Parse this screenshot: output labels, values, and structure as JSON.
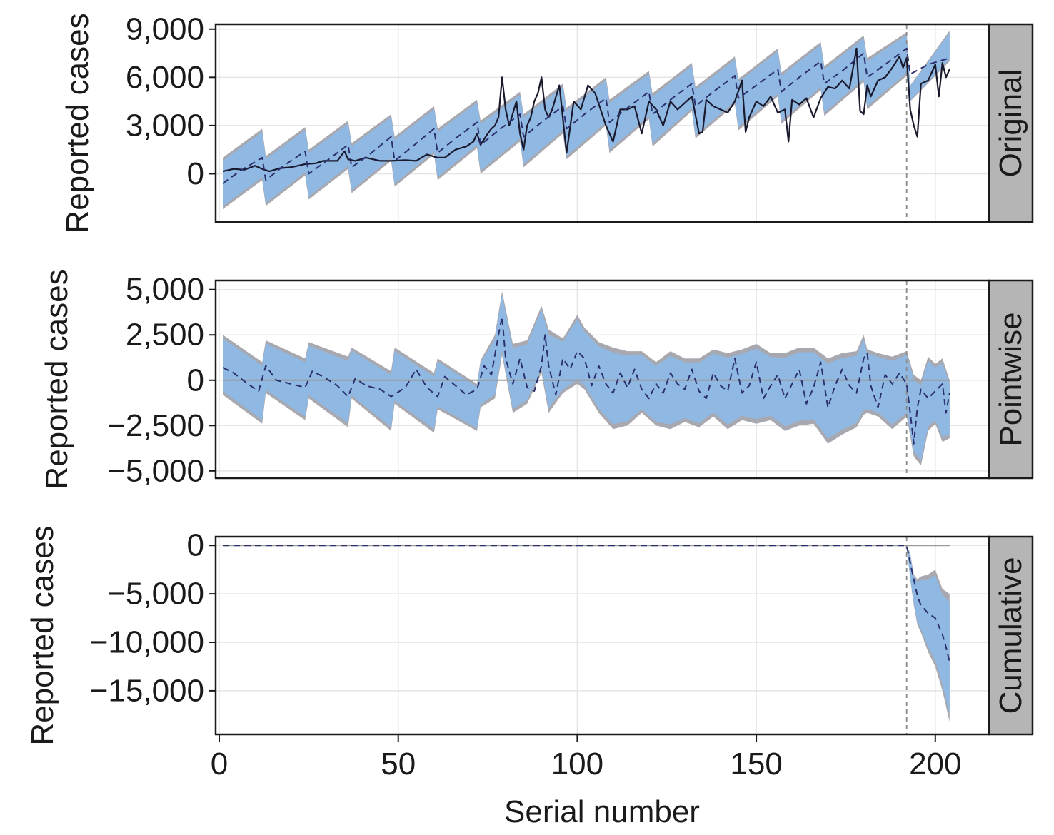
{
  "colors": {
    "band_blue": "#8fb8e3",
    "band_grey": "#a8a8b0",
    "observed_line": "#1a1a2e",
    "predicted_line": "#2b2f6e",
    "intervention_line": "#8a8a8a",
    "grid": "#e4e4e4",
    "strip_fill": "#b5b5b5"
  },
  "x_axis": {
    "label": "Serial number",
    "range": [
      -1,
      215
    ],
    "ticks": [
      0,
      50,
      100,
      150,
      200
    ],
    "tick_labels": [
      "0",
      "50",
      "100",
      "150",
      "200"
    ]
  },
  "intervention_x": 192,
  "chart_data": [
    {
      "type": "line",
      "panel": "Original",
      "ylabel": "Reported cases",
      "ylim": [
        -3000,
        9300
      ],
      "yticks": [
        0,
        3000,
        6000,
        9000
      ],
      "ytick_labels": [
        "0",
        "3,000",
        "6,000",
        "9,000"
      ],
      "series": [
        {
          "role": "observed",
          "x": [
            1,
            4,
            7,
            10,
            12,
            14,
            17,
            20,
            24,
            27,
            29,
            33,
            35,
            36,
            38,
            41,
            45,
            48,
            52,
            55,
            58,
            61,
            63,
            66,
            69,
            71,
            72,
            73,
            75,
            76,
            77,
            78,
            79,
            80,
            81,
            83,
            84,
            85,
            86,
            87,
            88,
            89,
            90,
            91,
            92,
            93,
            95,
            97,
            99,
            101,
            103,
            105,
            108,
            110,
            112,
            114,
            116,
            118,
            120,
            122,
            124,
            126,
            128,
            130,
            132,
            134,
            135,
            136,
            138,
            140,
            142,
            144,
            146,
            147,
            148,
            150,
            152,
            154,
            156,
            158,
            159,
            160,
            162,
            164,
            166,
            168,
            170,
            172,
            174,
            176,
            178,
            179,
            180,
            181,
            182,
            184,
            186,
            188,
            190,
            191,
            192,
            193,
            194,
            195,
            196,
            198,
            200,
            201,
            202,
            203,
            204
          ],
          "y": [
            150,
            300,
            250,
            500,
            300,
            150,
            350,
            400,
            600,
            650,
            800,
            800,
            1400,
            900,
            800,
            1000,
            800,
            800,
            850,
            800,
            1200,
            1000,
            1000,
            1500,
            1700,
            2000,
            2500,
            1800,
            2500,
            2800,
            3000,
            3500,
            6000,
            4000,
            3000,
            4500,
            2500,
            1500,
            3000,
            3500,
            4500,
            5000,
            6000,
            4000,
            3500,
            4000,
            5500,
            1300,
            4500,
            4000,
            5500,
            5000,
            3000,
            2000,
            4000,
            4000,
            4200,
            2500,
            4500,
            4000,
            3000,
            4500,
            4000,
            4400,
            4800,
            2500,
            2600,
            4600,
            4200,
            4000,
            3800,
            4500,
            5800,
            2600,
            3500,
            4500,
            4200,
            4800,
            3800,
            4000,
            2000,
            4600,
            4300,
            4700,
            3500,
            4700,
            5400,
            5300,
            5800,
            5300,
            7800,
            3900,
            3700,
            5500,
            4800,
            5800,
            6000,
            6600,
            7300,
            6600,
            7200,
            4000,
            3000,
            2300,
            5600,
            5800,
            6800,
            4800,
            6900,
            6000,
            6500
          ]
        },
        {
          "role": "predicted",
          "x": [
            1,
            6,
            12,
            13,
            18,
            24,
            25,
            30,
            36,
            37,
            42,
            48,
            49,
            54,
            60,
            61,
            66,
            72,
            73,
            78,
            84,
            85,
            90,
            96,
            97,
            102,
            108,
            109,
            114,
            120,
            121,
            126,
            132,
            133,
            138,
            144,
            145,
            150,
            156,
            157,
            162,
            168,
            169,
            174,
            180,
            181,
            186,
            192,
            193,
            198,
            204
          ],
          "y": [
            -600,
            200,
            1000,
            -400,
            500,
            1400,
            0,
            800,
            1800,
            400,
            1200,
            2300,
            800,
            1700,
            2800,
            1300,
            2200,
            3200,
            1800,
            2700,
            3700,
            2300,
            3200,
            4200,
            2800,
            3700,
            4700,
            3200,
            4100,
            5100,
            3700,
            4600,
            5600,
            4200,
            5100,
            6100,
            4700,
            5500,
            6500,
            5100,
            6000,
            7000,
            5600,
            6400,
            7500,
            6000,
            6800,
            7800,
            6200,
            6800,
            7200
          ]
        },
        {
          "role": "interval_upper",
          "x": [
            1,
            12,
            13,
            24,
            25,
            36,
            37,
            48,
            49,
            60,
            61,
            72,
            73,
            84,
            85,
            96,
            97,
            108,
            109,
            120,
            121,
            132,
            133,
            144,
            145,
            156,
            157,
            168,
            169,
            180,
            181,
            192,
            193,
            204
          ],
          "y": [
            1000,
            2800,
            1100,
            2900,
            1500,
            3300,
            1900,
            3700,
            2300,
            4200,
            2800,
            4600,
            3300,
            5100,
            3700,
            5600,
            4100,
            6000,
            4600,
            6400,
            5000,
            6900,
            5400,
            7300,
            5900,
            7800,
            6300,
            8200,
            6700,
            8600,
            7200,
            8800,
            5500,
            8900
          ]
        },
        {
          "role": "interval_lower",
          "x": [
            1,
            12,
            13,
            24,
            25,
            36,
            37,
            48,
            49,
            60,
            61,
            72,
            73,
            84,
            85,
            96,
            97,
            108,
            109,
            120,
            121,
            132,
            133,
            144,
            145,
            156,
            157,
            168,
            169,
            180,
            181,
            192,
            193,
            204
          ],
          "y": [
            -2200,
            -400,
            -2000,
            -100,
            -1600,
            300,
            -1200,
            800,
            -800,
            1200,
            -400,
            1600,
            0,
            2000,
            400,
            2500,
            900,
            3000,
            1300,
            3400,
            1700,
            3900,
            2200,
            4300,
            2700,
            4800,
            3100,
            5200,
            3600,
            5700,
            4000,
            6100,
            4500,
            7000
          ]
        }
      ]
    },
    {
      "type": "line",
      "panel": "Pointwise",
      "ylabel": "Reported cases",
      "ylim": [
        -5400,
        5500
      ],
      "yticks": [
        -5000,
        -2500,
        0,
        2500,
        5000
      ],
      "ytick_labels": [
        "−5,000",
        "−2,500",
        "0",
        "2,500",
        "5,000"
      ],
      "series": [
        {
          "role": "pointwise_effect",
          "x": [
            1,
            4,
            8,
            11,
            13,
            16,
            20,
            24,
            26,
            29,
            33,
            36,
            38,
            41,
            45,
            48,
            52,
            55,
            58,
            61,
            63,
            66,
            69,
            72,
            74,
            76,
            78,
            79,
            80,
            82,
            84,
            86,
            88,
            90,
            91,
            92,
            94,
            96,
            98,
            100,
            102,
            104,
            106,
            108,
            110,
            112,
            114,
            116,
            118,
            120,
            122,
            124,
            126,
            128,
            130,
            132,
            134,
            136,
            138,
            140,
            142,
            144,
            146,
            148,
            150,
            152,
            154,
            156,
            158,
            160,
            162,
            164,
            166,
            168,
            170,
            172,
            174,
            176,
            178,
            180,
            181,
            182,
            184,
            186,
            188,
            190,
            192,
            193,
            194,
            195,
            196,
            198,
            200,
            202,
            203,
            204
          ],
          "y": [
            700,
            400,
            -200,
            -600,
            800,
            0,
            -200,
            -400,
            500,
            200,
            -300,
            -900,
            100,
            -300,
            -500,
            -900,
            -400,
            600,
            -400,
            -900,
            200,
            -300,
            -800,
            -500,
            800,
            300,
            2500,
            3500,
            1200,
            -200,
            1200,
            -400,
            -600,
            800,
            2500,
            800,
            -800,
            1200,
            600,
            1600,
            1200,
            -300,
            800,
            -200,
            -700,
            400,
            -400,
            600,
            -500,
            -1000,
            -200,
            -700,
            400,
            -200,
            -500,
            600,
            -600,
            -1000,
            400,
            -300,
            -600,
            1200,
            -700,
            -300,
            1000,
            -1000,
            -300,
            300,
            -1000,
            -200,
            600,
            -1300,
            -400,
            1000,
            -1500,
            -300,
            600,
            -300,
            -700,
            1200,
            1500,
            -300,
            -1500,
            300,
            -200,
            400,
            -200,
            -1800,
            -3500,
            -1500,
            -500,
            -1000,
            -600,
            -200,
            -1800,
            -700
          ]
        },
        {
          "role": "interval_upper",
          "x": [
            1,
            12,
            13,
            24,
            25,
            36,
            37,
            48,
            49,
            60,
            61,
            72,
            73,
            77,
            79,
            82,
            86,
            90,
            92,
            96,
            100,
            102,
            106,
            110,
            114,
            118,
            122,
            126,
            130,
            134,
            138,
            142,
            146,
            150,
            154,
            158,
            162,
            166,
            170,
            174,
            178,
            180,
            181,
            184,
            188,
            192,
            194,
            196,
            198,
            200,
            202,
            204
          ],
          "y": [
            2500,
            1000,
            2200,
            1200,
            2100,
            1300,
            1800,
            500,
            1800,
            400,
            1200,
            -200,
            1100,
            2500,
            4900,
            2000,
            2200,
            4100,
            2800,
            2300,
            3600,
            2900,
            2100,
            1800,
            1600,
            1600,
            1000,
            1600,
            1200,
            1200,
            1700,
            1500,
            1700,
            2000,
            1500,
            1500,
            1800,
            1800,
            1200,
            1500,
            1600,
            2500,
            1700,
            1500,
            1300,
            1600,
            300,
            0,
            1300,
            900,
            1200,
            0
          ]
        },
        {
          "role": "interval_lower",
          "x": [
            1,
            12,
            13,
            24,
            25,
            36,
            37,
            48,
            49,
            60,
            61,
            72,
            73,
            77,
            79,
            82,
            86,
            90,
            92,
            96,
            100,
            102,
            106,
            110,
            114,
            118,
            122,
            126,
            130,
            134,
            138,
            142,
            146,
            150,
            154,
            158,
            162,
            166,
            170,
            174,
            178,
            180,
            181,
            184,
            188,
            192,
            194,
            196,
            198,
            200,
            202,
            204
          ],
          "y": [
            -800,
            -2400,
            -700,
            -2200,
            -1000,
            -2600,
            -1000,
            -2800,
            -1300,
            -2900,
            -1600,
            -2800,
            -1500,
            -1000,
            1400,
            -1800,
            -1300,
            400,
            -1800,
            -700,
            -200,
            -500,
            -1800,
            -2700,
            -2500,
            -1800,
            -2500,
            -2700,
            -2300,
            -2600,
            -2000,
            -2700,
            -2200,
            -2400,
            -2200,
            -2800,
            -2500,
            -2400,
            -3500,
            -3000,
            -2600,
            -1900,
            -1800,
            -2000,
            -2700,
            -2000,
            -4200,
            -4700,
            -2800,
            -2400,
            -3400,
            -3200
          ]
        }
      ]
    },
    {
      "type": "line",
      "panel": "Cumulative",
      "ylabel": "Reported cases",
      "ylim": [
        -19500,
        900
      ],
      "yticks": [
        -15000,
        -10000,
        -5000,
        0
      ],
      "ytick_labels": [
        "−15,000",
        "−10,000",
        "−5,000",
        "0"
      ],
      "series": [
        {
          "role": "cumulative_effect",
          "x": [
            1,
            192,
            193,
            194,
            195,
            196,
            198,
            200,
            202,
            203,
            204
          ],
          "y": [
            0,
            0,
            -1800,
            -3500,
            -5200,
            -6200,
            -7000,
            -7500,
            -9200,
            -10500,
            -12000
          ]
        },
        {
          "role": "interval_upper",
          "x": [
            192,
            193,
            194,
            195,
            196,
            198,
            200,
            202,
            204
          ],
          "y": [
            0,
            -800,
            -3000,
            -3500,
            -3200,
            -3000,
            -2500,
            -4500,
            -5000
          ]
        },
        {
          "role": "interval_lower",
          "x": [
            192,
            193,
            194,
            195,
            196,
            198,
            200,
            202,
            204
          ],
          "y": [
            0,
            -3500,
            -6200,
            -8200,
            -9000,
            -11000,
            -12500,
            -15000,
            -18200
          ]
        }
      ]
    }
  ]
}
